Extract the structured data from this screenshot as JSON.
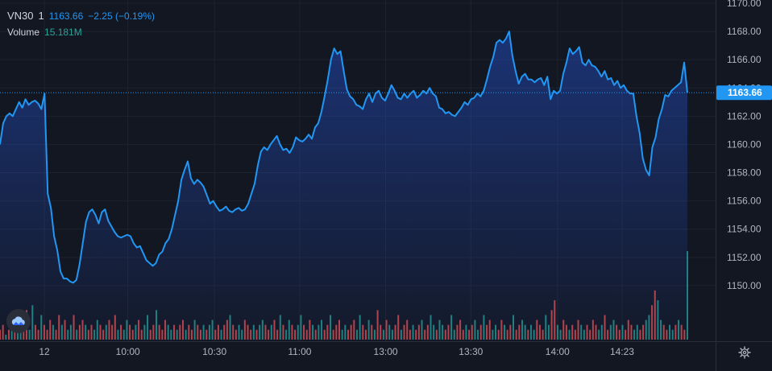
{
  "legend": {
    "symbol": "VN30",
    "interval": "1",
    "price": "1163.66",
    "change": "−2.25 (−0.19%)",
    "volume_label": "Volume",
    "volume_value": "15.181M"
  },
  "colors": {
    "background": "#131722",
    "line": "#2196f3",
    "vol_up": "#26a69a",
    "vol_down": "#ef5350",
    "grid": "#1e222d",
    "axis_text": "#b2b5be",
    "price_tag": "#2196f3"
  },
  "chart_data": {
    "type": "area",
    "title": "",
    "ylabel": "",
    "xlabel": "",
    "ylim": [
      1148,
      1170
    ],
    "grid": true,
    "last_price": 1163.66,
    "last_price_label": "1163.66",
    "y_ticks": [
      "1150.00",
      "1152.00",
      "1154.00",
      "1156.00",
      "1158.00",
      "1160.00",
      "1162.00",
      "1164.00",
      "1166.00",
      "1168.00",
      "1170.00"
    ],
    "x_tick_labels": [
      {
        "label": "12",
        "t": 0.0
      },
      {
        "label": "10:00",
        "t": 0.186
      },
      {
        "label": "10:30",
        "t": 0.312
      },
      {
        "label": "11:00",
        "t": 0.436
      },
      {
        "label": "13:00",
        "t": 0.561
      },
      {
        "label": "13:30",
        "t": 0.685
      },
      {
        "label": "14:00",
        "t": 0.811
      },
      {
        "label": "14:23",
        "t": 0.905
      }
    ],
    "series": [
      {
        "values": [
          1160.0,
          1161.5,
          1162.0,
          1162.2,
          1162.0,
          1162.5,
          1163.0,
          1162.6,
          1163.2,
          1162.8,
          1163.0,
          1163.1,
          1162.9,
          1162.5,
          1163.6,
          1156.5,
          1155.5,
          1153.5,
          1152.5,
          1151.0,
          1150.5,
          1150.5,
          1150.3,
          1150.2,
          1150.4,
          1151.5,
          1153.0,
          1154.5,
          1155.2,
          1155.4,
          1155.0,
          1154.4,
          1155.2,
          1155.4,
          1154.6,
          1154.2,
          1153.8,
          1153.5,
          1153.4,
          1153.5,
          1153.6,
          1153.5,
          1153.0,
          1152.7,
          1152.8,
          1152.3,
          1151.8,
          1151.6,
          1151.4,
          1151.6,
          1152.2,
          1152.4,
          1153.0,
          1153.3,
          1154.0,
          1155.0,
          1156.0,
          1157.5,
          1158.2,
          1158.8,
          1157.6,
          1157.2,
          1157.5,
          1157.3,
          1157.0,
          1156.4,
          1155.8,
          1156.0,
          1155.6,
          1155.3,
          1155.4,
          1155.6,
          1155.3,
          1155.2,
          1155.4,
          1155.5,
          1155.3,
          1155.4,
          1155.8,
          1156.5,
          1157.2,
          1158.5,
          1159.5,
          1159.8,
          1159.6,
          1160.0,
          1160.3,
          1160.6,
          1160.0,
          1159.6,
          1159.7,
          1159.4,
          1159.8,
          1160.5,
          1160.3,
          1160.2,
          1160.4,
          1160.7,
          1160.4,
          1161.2,
          1161.5,
          1162.3,
          1163.4,
          1164.6,
          1166.0,
          1166.8,
          1166.4,
          1166.6,
          1165.2,
          1163.9,
          1163.4,
          1163.2,
          1162.8,
          1162.7,
          1162.5,
          1163.2,
          1163.6,
          1163.0,
          1163.6,
          1163.8,
          1163.3,
          1163.1,
          1163.6,
          1164.2,
          1163.8,
          1163.3,
          1163.2,
          1163.6,
          1163.3,
          1163.6,
          1163.8,
          1163.3,
          1163.5,
          1163.8,
          1163.6,
          1164.0,
          1163.6,
          1163.4,
          1162.6,
          1162.5,
          1162.2,
          1162.3,
          1162.1,
          1162.0,
          1162.3,
          1162.6,
          1163.0,
          1162.8,
          1163.2,
          1163.3,
          1163.6,
          1163.4,
          1163.8,
          1164.6,
          1165.5,
          1166.2,
          1167.2,
          1167.4,
          1167.2,
          1167.5,
          1168.0,
          1166.3,
          1165.2,
          1164.3,
          1164.8,
          1165.0,
          1164.6,
          1164.6,
          1164.4,
          1164.6,
          1164.7,
          1164.2,
          1164.8,
          1163.2,
          1163.8,
          1163.6,
          1163.8,
          1165.0,
          1165.8,
          1166.8,
          1166.4,
          1166.6,
          1166.9,
          1165.8,
          1165.6,
          1166.0,
          1165.6,
          1165.5,
          1165.2,
          1164.8,
          1165.2,
          1164.6,
          1164.7,
          1164.2,
          1164.5,
          1164.0,
          1164.2,
          1163.8,
          1163.6,
          1163.6,
          1162.0,
          1160.8,
          1159.0,
          1158.2,
          1157.8,
          1159.8,
          1160.5,
          1161.8,
          1162.5,
          1163.5,
          1163.4,
          1163.8,
          1164.0,
          1164.2,
          1164.4,
          1165.8,
          1163.66
        ]
      }
    ],
    "volume": {
      "label": "Volume",
      "value_label": "15.181M",
      "values": [
        2,
        3,
        1,
        2,
        4,
        2,
        3,
        2,
        4,
        6,
        2,
        7,
        3,
        2,
        5,
        3,
        2,
        4,
        3,
        2,
        5,
        3,
        4,
        2,
        3,
        5,
        2,
        3,
        4,
        3,
        2,
        3,
        2,
        4,
        3,
        2,
        3,
        4,
        3,
        5,
        2,
        3,
        2,
        4,
        3,
        2,
        3,
        4,
        2,
        3,
        5,
        2,
        3,
        6,
        3,
        2,
        4,
        3,
        2,
        3,
        2,
        3,
        4,
        2,
        3,
        2,
        4,
        3,
        2,
        3,
        2,
        3,
        4,
        2,
        3,
        2,
        3,
        4,
        5,
        3,
        2,
        3,
        2,
        4,
        3,
        2,
        3,
        2,
        3,
        4,
        3,
        2,
        3,
        4,
        2,
        5,
        3,
        2,
        4,
        3,
        2,
        3,
        5,
        3,
        2,
        4,
        3,
        2,
        3,
        4,
        2,
        3,
        5,
        2,
        3,
        4,
        2,
        3,
        2,
        3,
        4,
        2,
        5,
        3,
        2,
        4,
        3,
        2,
        6,
        3,
        2,
        4,
        3,
        2,
        3,
        5,
        2,
        3,
        4,
        2,
        3,
        2,
        3,
        4,
        2,
        3,
        5,
        3,
        2,
        4,
        3,
        2,
        3,
        5,
        2,
        3,
        4,
        2,
        3,
        2,
        3,
        4,
        2,
        3,
        5,
        3,
        4,
        2,
        3,
        2,
        4,
        3,
        2,
        3,
        5,
        2,
        3,
        4,
        3,
        2,
        3,
        2,
        4,
        3,
        2,
        5,
        3,
        6,
        8,
        3,
        2,
        4,
        3,
        2,
        3,
        2,
        4,
        3,
        2,
        3,
        2,
        4,
        3,
        2,
        3,
        5,
        2,
        3,
        4,
        3,
        2,
        3,
        2,
        4,
        3,
        2,
        3,
        2,
        3,
        4,
        5,
        7,
        10,
        8,
        4,
        3,
        2,
        3,
        2,
        3,
        4,
        3,
        2,
        18
      ],
      "directions": "ddududuudduuddudddudduduududdudduudduddduduuddudduudduddduududduddudduduudduddudduuddduduuddudduduudduuddduduudduddduuddduuddududduduudduddduddudduuduudduudddudduududduudduddudduuduuddduudduudduddduudddduudduudduddduudduudduudduududduduudduuddduduuddudu"
    }
  },
  "toolbar": {
    "settings_icon": "gear-icon",
    "logo_icon": "cloud-logo-icon"
  }
}
